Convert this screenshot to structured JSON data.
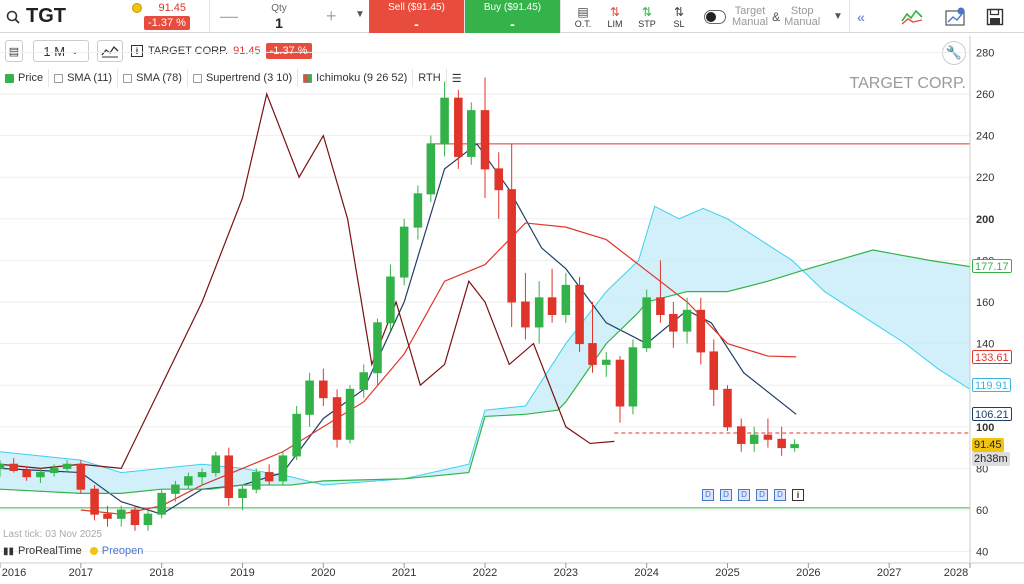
{
  "header": {
    "ticker": "TGT",
    "price": "91.45",
    "change": "-1.37 %",
    "qty_label": "Qty",
    "qty_value": "1",
    "sell_label": "Sell ($91.45)",
    "sell_value": "-",
    "buy_label": "Buy ($91.45)",
    "buy_value": "-",
    "order_types": [
      "O.T.",
      "LIM",
      "STP",
      "SL"
    ],
    "target_label": "Target",
    "target_sub": "Manual",
    "stop_label": "Stop",
    "stop_sub": "Manual",
    "amp": "&"
  },
  "toolbar": {
    "timeframe": "1 M",
    "instrument": "TARGET CORP.",
    "price": "91.45",
    "change": "-1.37 %",
    "indicators": [
      "Price",
      "SMA (11)",
      "SMA (78)",
      "Supertrend (3 10)",
      "Ichimoku (9 26 52)",
      "RTH"
    ]
  },
  "chart": {
    "watermark": "TARGET CORP.",
    "last_tick": "Last tick: 03 Nov 2025",
    "brand": "ProRealTime",
    "preopen": "Preopen",
    "price_tags": [
      {
        "label": "177.17",
        "value": 177.17,
        "color": "#34b24a"
      },
      {
        "label": "133.61",
        "value": 133.61,
        "color": "#e0352b"
      },
      {
        "label": "119.91",
        "value": 119.91,
        "color": "#3bb6e0"
      },
      {
        "label": "106.21",
        "value": 106.21,
        "color": "#1f3f66"
      },
      {
        "label": "91.45",
        "value": 91.45,
        "color": "#f1c40f"
      },
      {
        "label": "2h38m",
        "value": 84.5,
        "color": "#ccc"
      }
    ],
    "accent_red": "#e0352b",
    "accent_green": "#34b24a"
  },
  "chart_data": {
    "type": "line",
    "title": "TARGET CORP.",
    "y_axis": {
      "ticks": [
        40,
        60,
        80,
        100,
        120,
        140,
        160,
        180,
        200,
        220,
        240,
        260,
        280
      ],
      "range": [
        35,
        285
      ]
    },
    "x_axis": {
      "ticks": [
        "2016",
        "2017",
        "2018",
        "2019",
        "2020",
        "2021",
        "2022",
        "2023",
        "2024",
        "2025",
        "2026",
        "2027",
        "2028"
      ],
      "range": [
        2016.0,
        2028.0
      ]
    },
    "horizontal_lines": [
      {
        "value": 236,
        "color": "#e0352b"
      },
      {
        "value": 61,
        "color": "#34b24a"
      },
      {
        "value": 97,
        "color": "#e0352b",
        "dashed": true
      }
    ],
    "candles": [
      [
        2016.0,
        80,
        84,
        76,
        82
      ],
      [
        2016.17,
        82,
        85,
        78,
        79
      ],
      [
        2016.33,
        79,
        81,
        74,
        76
      ],
      [
        2016.5,
        76,
        80,
        73,
        78
      ],
      [
        2016.67,
        78,
        82,
        76,
        80
      ],
      [
        2016.83,
        80,
        84,
        78,
        82
      ],
      [
        2017.0,
        82,
        84,
        68,
        70
      ],
      [
        2017.17,
        70,
        72,
        55,
        58
      ],
      [
        2017.33,
        58,
        62,
        52,
        56
      ],
      [
        2017.5,
        56,
        62,
        52,
        60
      ],
      [
        2017.67,
        60,
        62,
        50,
        53
      ],
      [
        2017.83,
        53,
        60,
        50,
        58
      ],
      [
        2018.0,
        58,
        70,
        56,
        68
      ],
      [
        2018.17,
        68,
        74,
        64,
        72
      ],
      [
        2018.33,
        72,
        78,
        70,
        76
      ],
      [
        2018.5,
        76,
        80,
        72,
        78
      ],
      [
        2018.67,
        78,
        88,
        76,
        86
      ],
      [
        2018.83,
        86,
        90,
        62,
        66
      ],
      [
        2019.0,
        66,
        72,
        60,
        70
      ],
      [
        2019.17,
        70,
        80,
        68,
        78
      ],
      [
        2019.33,
        78,
        82,
        72,
        74
      ],
      [
        2019.5,
        74,
        88,
        72,
        86
      ],
      [
        2019.67,
        86,
        110,
        84,
        106
      ],
      [
        2019.83,
        106,
        126,
        100,
        122
      ],
      [
        2020.0,
        122,
        128,
        110,
        114
      ],
      [
        2020.17,
        114,
        118,
        90,
        94
      ],
      [
        2020.33,
        94,
        120,
        92,
        118
      ],
      [
        2020.5,
        118,
        130,
        114,
        126
      ],
      [
        2020.67,
        126,
        152,
        120,
        150
      ],
      [
        2020.83,
        150,
        178,
        146,
        172
      ],
      [
        2021.0,
        172,
        200,
        168,
        196
      ],
      [
        2021.17,
        196,
        216,
        190,
        212
      ],
      [
        2021.33,
        212,
        240,
        208,
        236
      ],
      [
        2021.5,
        236,
        266,
        230,
        258
      ],
      [
        2021.67,
        258,
        262,
        224,
        230
      ],
      [
        2021.83,
        230,
        256,
        226,
        252
      ],
      [
        2022.0,
        252,
        268,
        210,
        224
      ],
      [
        2022.17,
        224,
        232,
        200,
        214
      ],
      [
        2022.33,
        214,
        236,
        148,
        160
      ],
      [
        2022.5,
        160,
        174,
        142,
        148
      ],
      [
        2022.67,
        148,
        170,
        140,
        162
      ],
      [
        2022.83,
        162,
        176,
        150,
        154
      ],
      [
        2023.0,
        154,
        174,
        150,
        168
      ],
      [
        2023.17,
        168,
        172,
        136,
        140
      ],
      [
        2023.33,
        140,
        160,
        126,
        130
      ],
      [
        2023.5,
        130,
        136,
        124,
        132
      ],
      [
        2023.67,
        132,
        134,
        102,
        110
      ],
      [
        2023.83,
        110,
        142,
        106,
        138
      ],
      [
        2024.0,
        138,
        166,
        136,
        162
      ],
      [
        2024.17,
        162,
        180,
        150,
        154
      ],
      [
        2024.33,
        154,
        160,
        138,
        146
      ],
      [
        2024.5,
        146,
        162,
        140,
        156
      ],
      [
        2024.67,
        156,
        162,
        130,
        136
      ],
      [
        2024.83,
        136,
        142,
        110,
        118
      ],
      [
        2025.0,
        118,
        120,
        98,
        100
      ],
      [
        2025.17,
        100,
        104,
        88,
        92
      ],
      [
        2025.33,
        92,
        100,
        88,
        96
      ],
      [
        2025.5,
        96,
        104,
        90,
        94
      ],
      [
        2025.67,
        94,
        100,
        86,
        90
      ],
      [
        2025.83,
        90,
        94,
        88,
        91.45
      ]
    ],
    "series": [
      {
        "name": "SMA (11)",
        "color": "#1f3f66",
        "points": [
          [
            2016.0,
            80
          ],
          [
            2016.5,
            79
          ],
          [
            2017.0,
            78
          ],
          [
            2017.5,
            64
          ],
          [
            2018.0,
            58
          ],
          [
            2018.5,
            70
          ],
          [
            2019.0,
            72
          ],
          [
            2019.5,
            78
          ],
          [
            2020.0,
            104
          ],
          [
            2020.5,
            118
          ],
          [
            2021.0,
            160
          ],
          [
            2021.5,
            224
          ],
          [
            2021.9,
            236
          ],
          [
            2022.3,
            214
          ],
          [
            2022.7,
            186
          ],
          [
            2023.0,
            176
          ],
          [
            2023.5,
            150
          ],
          [
            2024.0,
            140
          ],
          [
            2024.5,
            156
          ],
          [
            2024.8,
            150
          ],
          [
            2025.2,
            126
          ],
          [
            2025.85,
            106
          ]
        ]
      },
      {
        "name": "SMA (78)",
        "color": "#e0352b",
        "points": [
          [
            2017.0,
            60
          ],
          [
            2017.5,
            58
          ],
          [
            2018.0,
            62
          ],
          [
            2018.5,
            72
          ],
          [
            2019.0,
            80
          ],
          [
            2019.5,
            88
          ],
          [
            2020.0,
            100
          ],
          [
            2020.5,
            112
          ],
          [
            2021.0,
            135
          ],
          [
            2021.5,
            170
          ],
          [
            2022.0,
            178
          ],
          [
            2022.5,
            198
          ],
          [
            2023.0,
            196
          ],
          [
            2023.5,
            190
          ],
          [
            2024.0,
            175
          ],
          [
            2024.5,
            160
          ],
          [
            2025.0,
            140
          ],
          [
            2025.5,
            134
          ],
          [
            2025.85,
            133.6
          ]
        ]
      },
      {
        "name": "Supertrend (3 10)",
        "color": "#34b24a",
        "points": [
          [
            2016.0,
            70
          ],
          [
            2017.0,
            68
          ],
          [
            2017.5,
            68
          ],
          [
            2018.0,
            70
          ],
          [
            2018.6,
            70
          ],
          [
            2019.0,
            72
          ],
          [
            2019.6,
            72
          ],
          [
            2020.0,
            74
          ],
          [
            2021.0,
            75
          ],
          [
            2021.8,
            78
          ],
          [
            2022.0,
            105
          ],
          [
            2022.5,
            106
          ],
          [
            2022.9,
            108
          ],
          [
            2023.0,
            112
          ],
          [
            2023.5,
            140
          ],
          [
            2023.9,
            155
          ],
          [
            2024.0,
            160
          ],
          [
            2024.5,
            165
          ],
          [
            2025.0,
            165
          ],
          [
            2025.5,
            170
          ],
          [
            2026.0,
            176
          ],
          [
            2026.8,
            185
          ],
          [
            2027.5,
            180
          ],
          [
            2028.0,
            177
          ]
        ]
      },
      {
        "name": "Ichimoku (9 26 52)",
        "color": "#7a1010",
        "points": [
          [
            2016.0,
            82
          ],
          [
            2016.5,
            80
          ],
          [
            2017.0,
            82
          ],
          [
            2017.5,
            80
          ],
          [
            2018.0,
            120
          ],
          [
            2018.5,
            160
          ],
          [
            2019.0,
            210
          ],
          [
            2019.3,
            260
          ],
          [
            2019.7,
            220
          ],
          [
            2020.0,
            240
          ],
          [
            2020.3,
            200
          ],
          [
            2020.6,
            130
          ],
          [
            2020.9,
            160
          ],
          [
            2021.2,
            120
          ],
          [
            2021.5,
            130
          ],
          [
            2021.8,
            170
          ],
          [
            2022.0,
            160
          ],
          [
            2022.3,
            130
          ],
          [
            2022.6,
            140
          ],
          [
            2023.0,
            100
          ],
          [
            2023.3,
            92
          ],
          [
            2023.6,
            93
          ]
        ]
      }
    ]
  }
}
